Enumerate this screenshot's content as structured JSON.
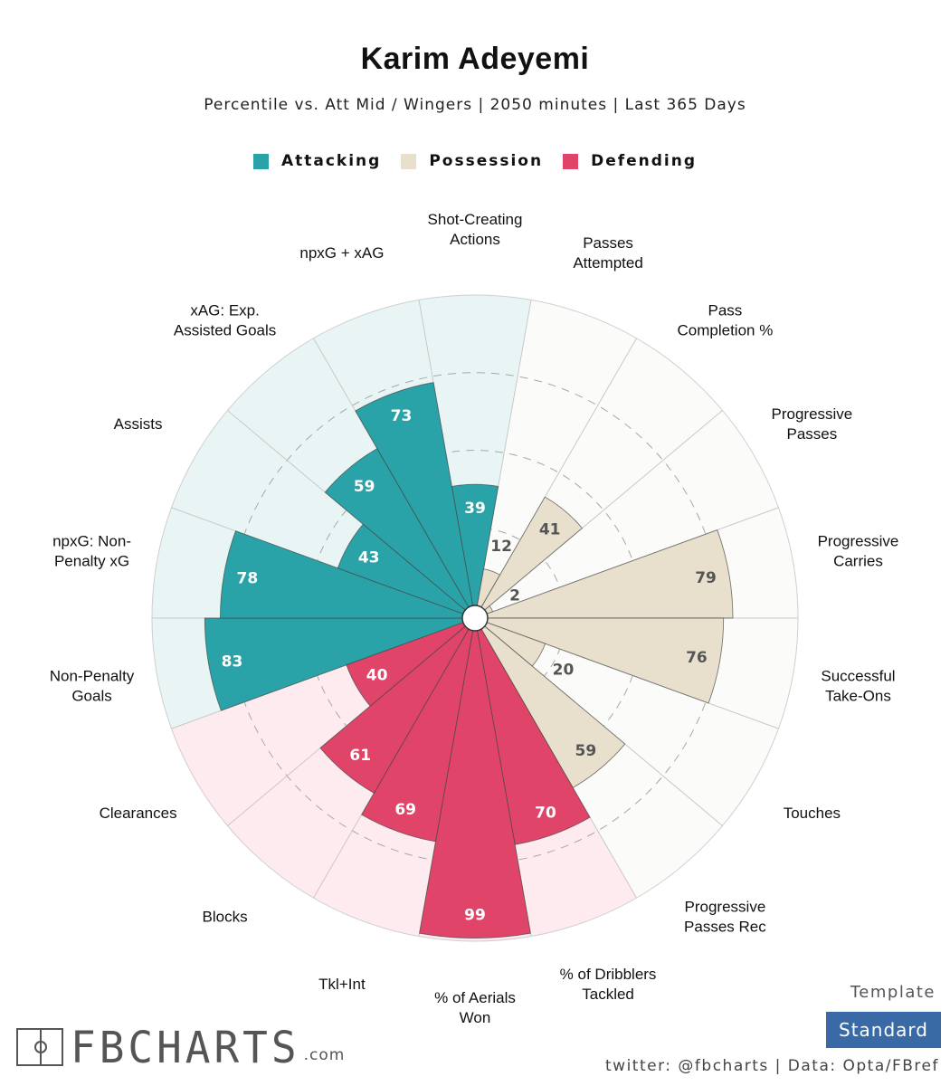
{
  "header": {
    "title": "Karim Adeyemi",
    "subtitle": "Percentile vs. Att Mid / Wingers | 2050 minutes | Last 365 Days"
  },
  "legend": [
    {
      "label": "Attacking",
      "color": "#2aa3a8"
    },
    {
      "label": "Possession",
      "color": "#e8e0cc"
    },
    {
      "label": "Defending",
      "color": "#e04468"
    }
  ],
  "chart_data": {
    "type": "polar-bar",
    "range": [
      0,
      100
    ],
    "gridlines": [
      25,
      50,
      75
    ],
    "categories": [
      {
        "label": "Shot-Creating Actions",
        "value": 39,
        "group": "Attacking"
      },
      {
        "label": "Passes Attempted",
        "value": 12,
        "group": "Possession"
      },
      {
        "label": "Pass Completion %",
        "value": 41,
        "group": "Possession"
      },
      {
        "label": "Progressive Passes",
        "value": 2,
        "group": "Possession"
      },
      {
        "label": "Progressive Carries",
        "value": 79,
        "group": "Possession"
      },
      {
        "label": "Successful Take-Ons",
        "value": 76,
        "group": "Possession"
      },
      {
        "label": "Touches",
        "value": 20,
        "group": "Possession"
      },
      {
        "label": "Progressive Passes Rec",
        "value": 59,
        "group": "Possession"
      },
      {
        "label": "% of Dribblers Tackled",
        "value": 70,
        "group": "Defending"
      },
      {
        "label": "% of Aerials Won",
        "value": 99,
        "group": "Defending"
      },
      {
        "label": "Tkl+Int",
        "value": 69,
        "group": "Defending"
      },
      {
        "label": "Blocks",
        "value": 61,
        "group": "Defending"
      },
      {
        "label": "Clearances",
        "value": 40,
        "group": "Defending"
      },
      {
        "label": "Non-Penalty Goals",
        "value": 83,
        "group": "Attacking"
      },
      {
        "label": "npxG: Non-Penalty xG",
        "value": 78,
        "group": "Attacking"
      },
      {
        "label": "Assists",
        "value": 43,
        "group": "Attacking"
      },
      {
        "label": "xAG: Exp. Assisted Goals",
        "value": 59,
        "group": "Attacking"
      },
      {
        "label": "npxG + xAG",
        "value": 73,
        "group": "Attacking"
      }
    ]
  },
  "styles": {
    "Attacking": {
      "fill": "#2aa3a8",
      "bg": "#e9f5f5",
      "text": "#ffffff"
    },
    "Possession": {
      "fill": "#e8e0cc",
      "bg": "#fbfbf9",
      "text": "#555555"
    },
    "Defending": {
      "fill": "#e04468",
      "bg": "#fdebef",
      "text": "#ffffff"
    }
  },
  "footer": {
    "logo_text": "FBCHARTS",
    "logo_suffix": ".com",
    "template_label": "Template",
    "template_value": "Standard",
    "credits": "twitter: @fbcharts | Data: Opta/FBref"
  }
}
